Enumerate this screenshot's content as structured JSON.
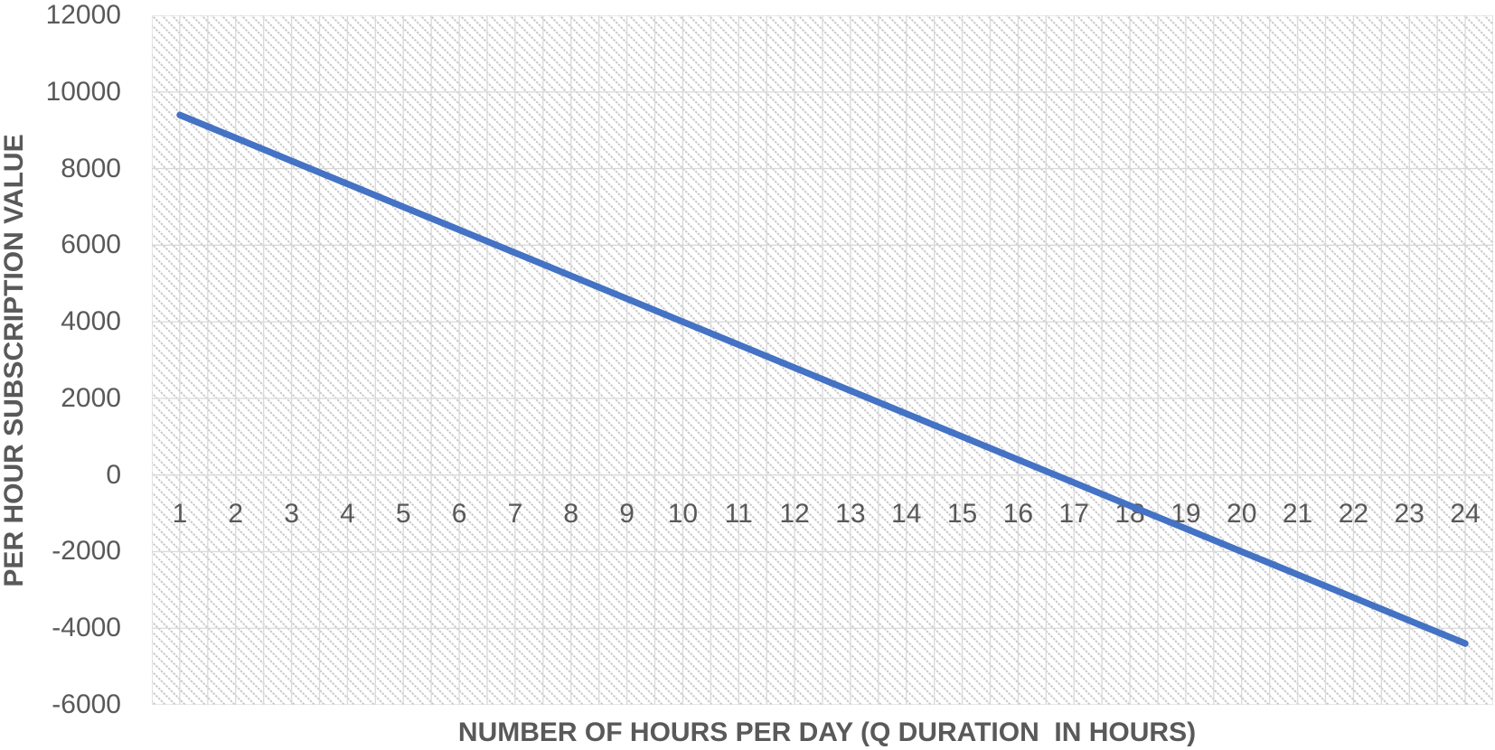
{
  "chart_data": {
    "type": "line",
    "title": "",
    "xlabel": "NUMBER OF HOURS PER DAY (Q DURATION  IN HOURS)",
    "ylabel": "PER HOUR SUBSCRIPTION VALUE",
    "x": [
      1,
      2,
      3,
      4,
      5,
      6,
      7,
      8,
      9,
      10,
      11,
      12,
      13,
      14,
      15,
      16,
      17,
      18,
      19,
      20,
      21,
      22,
      23,
      24
    ],
    "series": [
      {
        "name": "per hour subscription value",
        "values": [
          9400,
          8800,
          8200,
          7600,
          7000,
          6400,
          5800,
          5200,
          4600,
          4000,
          3400,
          2800,
          2200,
          1600,
          1000,
          400,
          -200,
          -800,
          -1400,
          -2000,
          -2600,
          -3200,
          -3800,
          -4400
        ]
      }
    ],
    "y_ticks": [
      12000,
      10000,
      8000,
      6000,
      4000,
      2000,
      0,
      -2000,
      -4000,
      -6000
    ],
    "ylim": [
      -6000,
      12000
    ],
    "xlim_categories": [
      1,
      24
    ],
    "legend": "none",
    "grid": {
      "horizontal": "major every 2000",
      "vertical": "major and minor (half-category)"
    },
    "plot_area_fill": "light-downward-diagonal-hatch",
    "colors": {
      "line": "#4472C4",
      "axis_text": "#595959",
      "gridline": "#D9D9D9",
      "hatch_dot": "#C9C9C9",
      "background": "#FFFFFF"
    },
    "line_width": 7.3
  }
}
